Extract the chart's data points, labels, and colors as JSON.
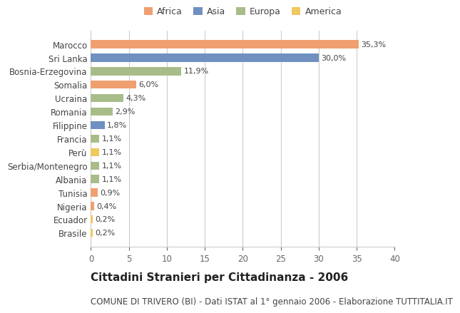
{
  "title": "Cittadini Stranieri per Cittadinanza - 2006",
  "subtitle": "COMUNE DI TRIVERO (BI) - Dati ISTAT al 1° gennaio 2006 - Elaborazione TUTTITALIA.IT",
  "categories": [
    "Marocco",
    "Sri Lanka",
    "Bosnia-Erzegovina",
    "Somalia",
    "Ucraina",
    "Romania",
    "Filippine",
    "Francia",
    "Perù",
    "Serbia/Montenegro",
    "Albania",
    "Tunisia",
    "Nigeria",
    "Ecuador",
    "Brasile"
  ],
  "values": [
    35.3,
    30.0,
    11.9,
    6.0,
    4.3,
    2.9,
    1.8,
    1.1,
    1.1,
    1.1,
    1.1,
    0.9,
    0.4,
    0.2,
    0.2
  ],
  "labels": [
    "35,3%",
    "30,0%",
    "11,9%",
    "6,0%",
    "4,3%",
    "2,9%",
    "1,8%",
    "1,1%",
    "1,1%",
    "1,1%",
    "1,1%",
    "0,9%",
    "0,4%",
    "0,2%",
    "0,2%"
  ],
  "continent": [
    "Africa",
    "Asia",
    "Europa",
    "Africa",
    "Europa",
    "Europa",
    "Asia",
    "Europa",
    "America",
    "Europa",
    "Europa",
    "Africa",
    "Africa",
    "America",
    "America"
  ],
  "colors": {
    "Africa": "#F0A070",
    "Asia": "#7090C0",
    "Europa": "#A8BC8A",
    "America": "#F0C860"
  },
  "legend_order": [
    "Africa",
    "Asia",
    "Europa",
    "America"
  ],
  "xlim": [
    0,
    40
  ],
  "xticks": [
    0,
    5,
    10,
    15,
    20,
    25,
    30,
    35,
    40
  ],
  "bg_color": "#ffffff",
  "grid_color": "#cccccc",
  "bar_height": 0.6,
  "title_fontsize": 11,
  "subtitle_fontsize": 8.5,
  "label_fontsize": 8,
  "tick_fontsize": 8.5,
  "legend_fontsize": 9
}
